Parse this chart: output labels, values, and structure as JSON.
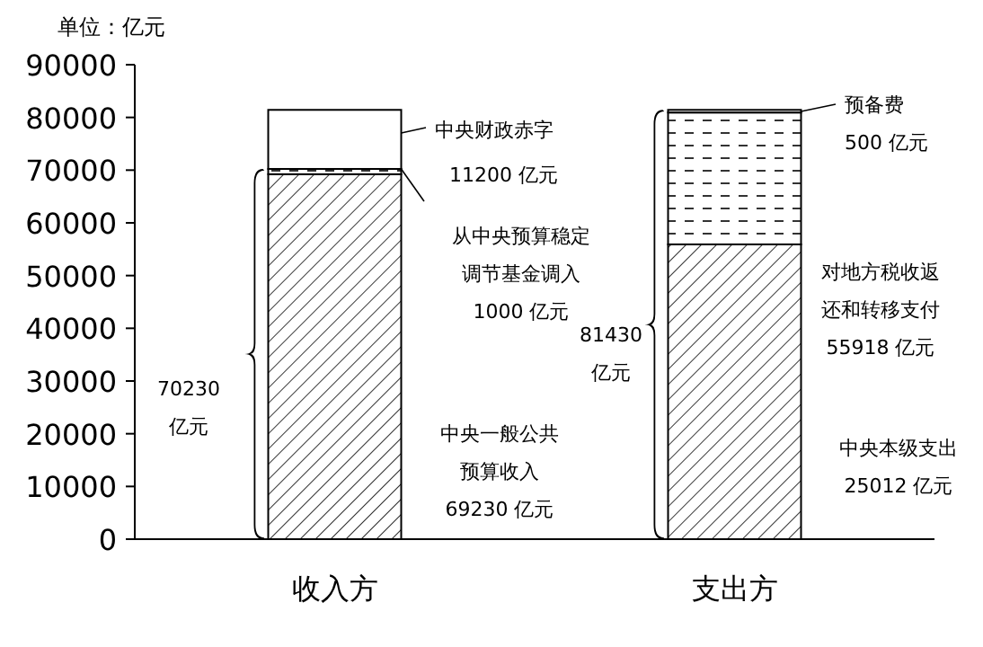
{
  "chart_data": {
    "type": "bar",
    "stacked": true,
    "ylabel": "单位：亿元",
    "categories": [
      "收入方",
      "支出方"
    ],
    "series": [
      {
        "color": "#000000",
        "values": [
          69230,
          55918
        ]
      },
      {
        "color": "#000000",
        "values": [
          1000,
          25012
        ]
      },
      {
        "color": "#ffffff",
        "values": [
          11200,
          500
        ]
      }
    ],
    "ylim": [
      0,
      90000
    ],
    "yticks": [
      0,
      10000,
      20000,
      30000,
      40000,
      50000,
      60000,
      70000,
      80000,
      90000
    ],
    "grid": false,
    "annotations": [
      "中央财政赤字",
      "11200 亿元",
      "从中央预算稳定调节基金调入1000 亿元",
      "中央一般公共预算收入69230 亿元",
      "70230亿元",
      "81430亿元",
      "预备费500 亿元",
      "对地方税收返还和转移支付55918 亿元",
      "中央本级支出25012 亿元"
    ]
  }
}
